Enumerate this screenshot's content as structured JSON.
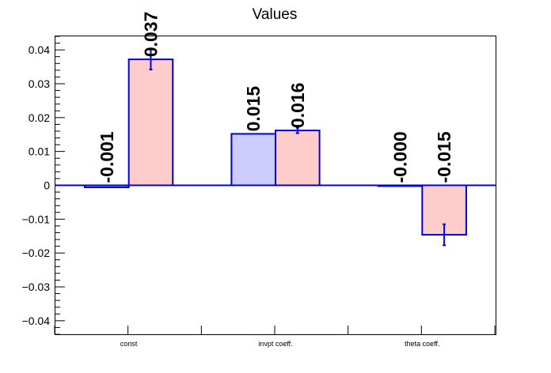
{
  "chart_data": {
    "type": "bar",
    "title": "Values",
    "xlabel": "",
    "ylabel": "",
    "categories": [
      "const",
      "invpt coeff.",
      "theta coeff."
    ],
    "ylim": [
      -0.044,
      0.044
    ],
    "yticks": [
      -0.04,
      -0.03,
      -0.02,
      -0.01,
      0,
      0.01,
      0.02,
      0.03,
      0.04
    ],
    "ytick_labels": [
      "−0.04",
      "−0.03",
      "−0.02",
      "−0.01",
      "0",
      "0.01",
      "0.02",
      "0.03",
      "0.04"
    ],
    "grid": false,
    "legend": false,
    "series": [
      {
        "values": [
          -0.0006,
          0.0152,
          -0.0001
        ],
        "errors": [
          0,
          0,
          0
        ],
        "labels": [
          "-0.001",
          "0.015",
          "-0.000"
        ],
        "fill": "#ccccff",
        "edge": "#0000dd"
      },
      {
        "values": [
          0.0372,
          0.0162,
          -0.0146
        ],
        "errors": [
          0.003,
          0.0008,
          0.0031
        ],
        "labels": [
          "0.037",
          "0.016",
          "-0.015"
        ],
        "fill": "#ffcccc",
        "edge": "#0000dd"
      }
    ]
  }
}
